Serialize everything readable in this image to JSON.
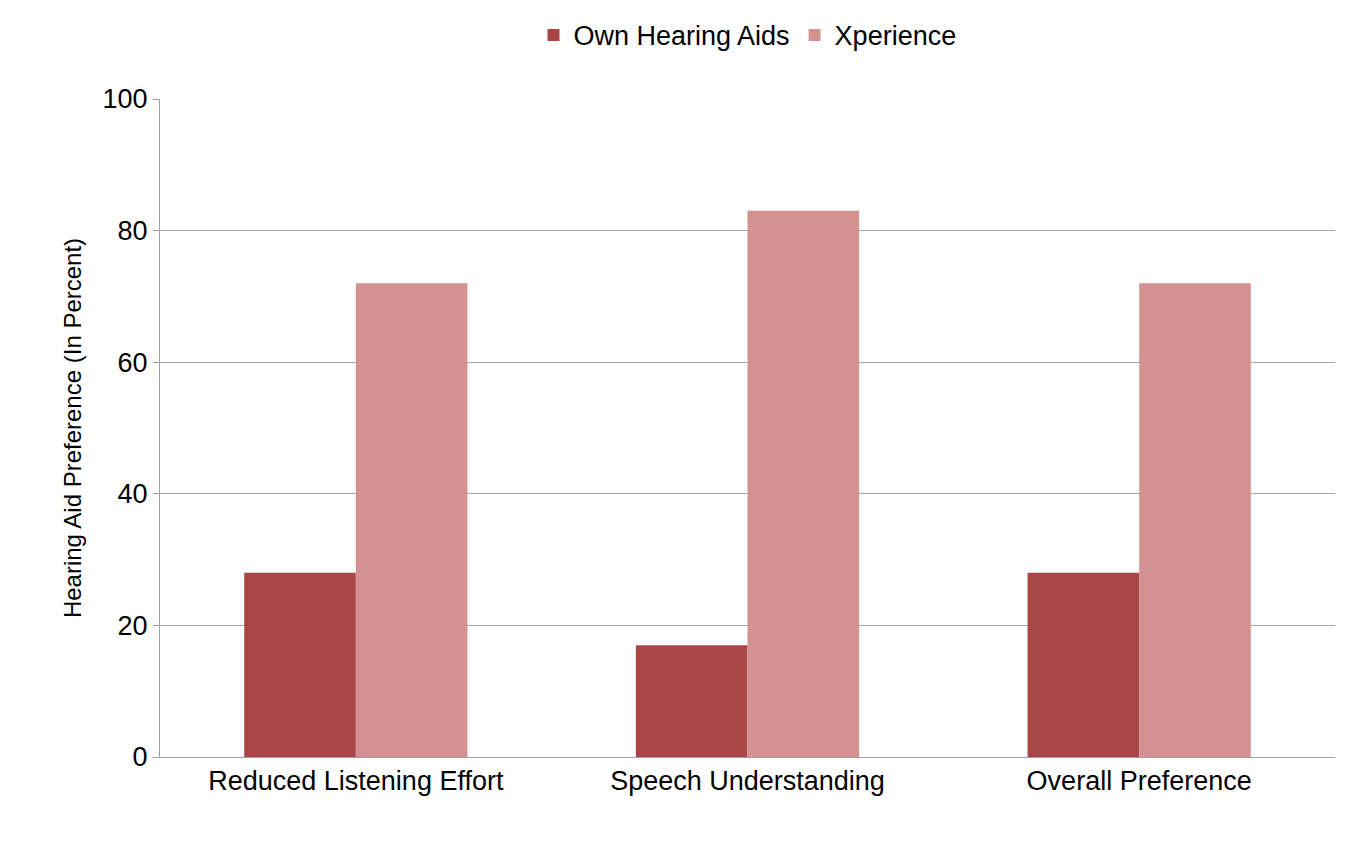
{
  "chart_data": {
    "type": "bar",
    "y_label": "Hearing Aid Preference (In Percent)",
    "categories": [
      "Reduced Listening Effort",
      "Speech Understanding",
      "Overall Preference"
    ],
    "series": [
      {
        "name": "Own Hearing Aids",
        "color": "#a84646",
        "values": [
          28,
          17,
          28
        ]
      },
      {
        "name": "Xperience",
        "color": "#d39191",
        "values": [
          72,
          83,
          72
        ]
      }
    ],
    "ylim": [
      0,
      100
    ],
    "yticks": [
      0,
      20,
      40,
      60,
      80,
      100
    ],
    "grid": true,
    "legend": "top"
  }
}
